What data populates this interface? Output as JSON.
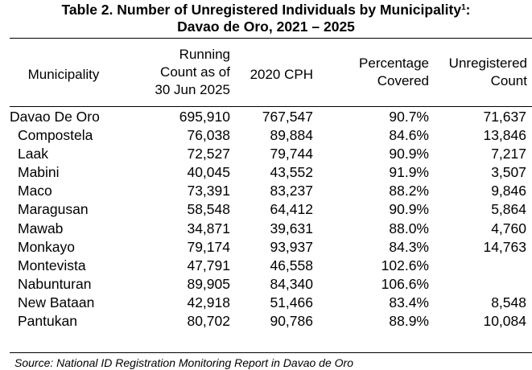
{
  "title": {
    "line1": "Table 2. Number of Unregistered Individuals by Municipality",
    "superscript": "1",
    "line1_suffix": ":",
    "line2": "Davao de Oro, 2021 – 2025"
  },
  "headers": {
    "municipality": "Municipality",
    "running_1": "Running",
    "running_2": "Count as of",
    "running_3": "30 Jun 2025",
    "cph": "2020 CPH",
    "pct_1": "Percentage",
    "pct_2": "Covered",
    "unreg_1": "Unregistered",
    "unreg_2": "Count"
  },
  "rows": [
    {
      "name": "Davao De Oro",
      "running": "695,910",
      "cph": "767,547",
      "pct": "90.7%",
      "unreg": "71,637"
    },
    {
      "name": "Compostela",
      "running": "76,038",
      "cph": "89,884",
      "pct": "84.6%",
      "unreg": "13,846"
    },
    {
      "name": "Laak",
      "running": "72,527",
      "cph": "79,744",
      "pct": "90.9%",
      "unreg": "7,217"
    },
    {
      "name": "Mabini",
      "running": "40,045",
      "cph": "43,552",
      "pct": "91.9%",
      "unreg": "3,507"
    },
    {
      "name": "Maco",
      "running": "73,391",
      "cph": "83,237",
      "pct": "88.2%",
      "unreg": "9,846"
    },
    {
      "name": "Maragusan",
      "running": "58,548",
      "cph": "64,412",
      "pct": "90.9%",
      "unreg": "5,864"
    },
    {
      "name": "Mawab",
      "running": "34,871",
      "cph": "39,631",
      "pct": "88.0%",
      "unreg": "4,760"
    },
    {
      "name": "Monkayo",
      "running": "79,174",
      "cph": "93,937",
      "pct": "84.3%",
      "unreg": "14,763"
    },
    {
      "name": "Montevista",
      "running": "47,791",
      "cph": "46,558",
      "pct": "102.6%",
      "unreg": ""
    },
    {
      "name": "Nabunturan",
      "running": "89,905",
      "cph": "84,340",
      "pct": "106.6%",
      "unreg": ""
    },
    {
      "name": "New Bataan",
      "running": "42,918",
      "cph": "51,466",
      "pct": "83.4%",
      "unreg": "8,548"
    },
    {
      "name": "Pantukan",
      "running": "80,702",
      "cph": "90,786",
      "pct": "88.9%",
      "unreg": "10,084"
    }
  ],
  "source": "Source: National ID Registration Monitoring Report in Davao de Oro"
}
